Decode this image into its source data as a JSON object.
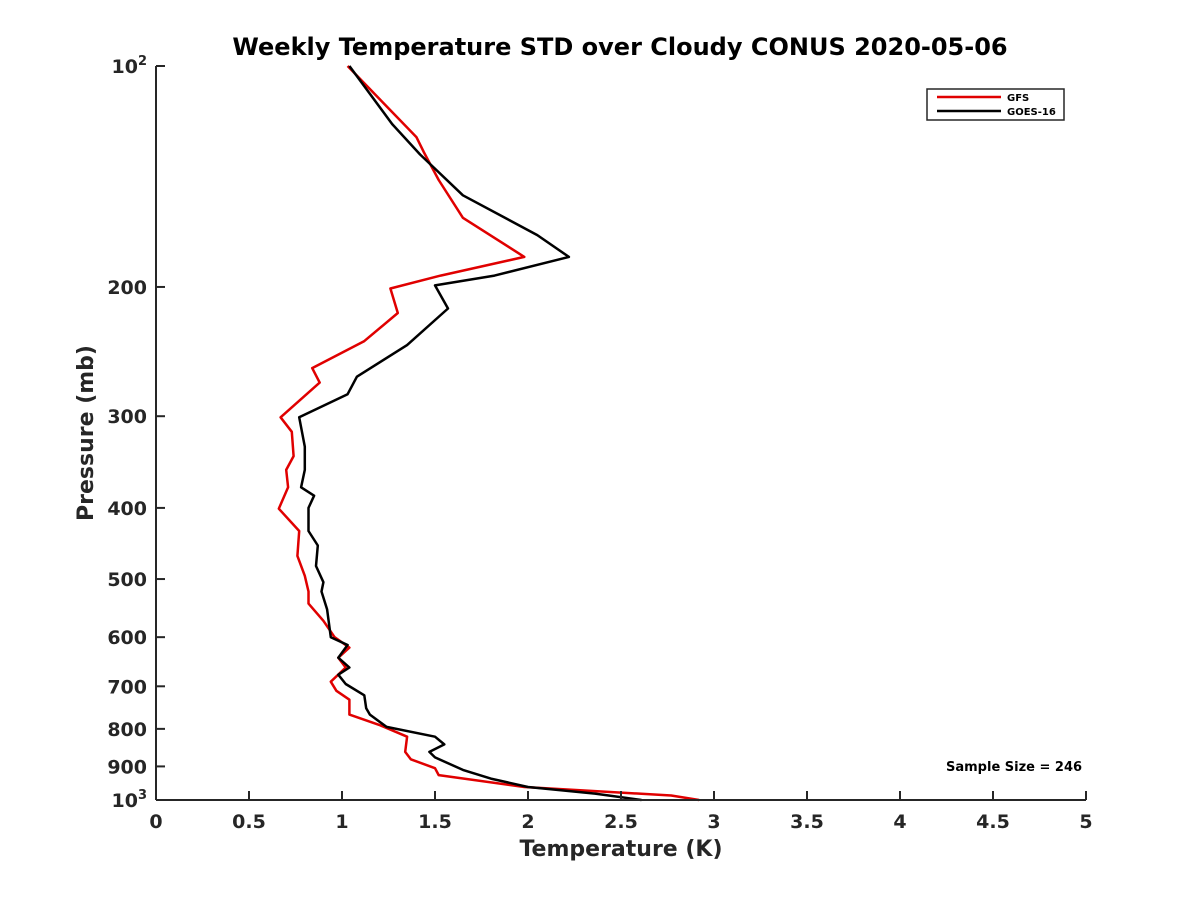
{
  "chart_data": {
    "type": "line",
    "title": "Weekly Temperature STD over Cloudy CONUS 2020-05-06",
    "xlabel": "Temperature (K)",
    "ylabel": "Pressure (mb)",
    "xlim": [
      0,
      5
    ],
    "ylim": [
      1000,
      100
    ],
    "yscale": "log",
    "y_reversed": true,
    "grid": false,
    "legend_position": "top-right",
    "x_ticks": [
      {
        "value": 0,
        "label": "0"
      },
      {
        "value": 0.5,
        "label": "0.5"
      },
      {
        "value": 1,
        "label": "1"
      },
      {
        "value": 1.5,
        "label": "1.5"
      },
      {
        "value": 2,
        "label": "2"
      },
      {
        "value": 2.5,
        "label": "2.5"
      },
      {
        "value": 3,
        "label": "3"
      },
      {
        "value": 3.5,
        "label": "3.5"
      },
      {
        "value": 4,
        "label": "4"
      },
      {
        "value": 4.5,
        "label": "4.5"
      },
      {
        "value": 5,
        "label": "5"
      }
    ],
    "y_ticks": [
      {
        "value": 100,
        "base": "10",
        "exp": "2"
      },
      {
        "value": 200,
        "label": "200"
      },
      {
        "value": 300,
        "label": "300"
      },
      {
        "value": 400,
        "label": "400"
      },
      {
        "value": 500,
        "label": "500"
      },
      {
        "value": 600,
        "label": "600"
      },
      {
        "value": 700,
        "label": "700"
      },
      {
        "value": 800,
        "label": "800"
      },
      {
        "value": 900,
        "label": "900"
      },
      {
        "value": 1000,
        "base": "10",
        "exp": "3"
      }
    ],
    "annotation": "Sample Size = 246",
    "series": [
      {
        "name": "GFS",
        "color": "#e00000",
        "points": [
          [
            1.03,
            100
          ],
          [
            1.4,
            125
          ],
          [
            1.44,
            131
          ],
          [
            1.52,
            143
          ],
          [
            1.65,
            161
          ],
          [
            1.98,
            182
          ],
          [
            1.53,
            193
          ],
          [
            1.26,
            201
          ],
          [
            1.3,
            217
          ],
          [
            1.12,
            237
          ],
          [
            0.84,
            258
          ],
          [
            0.88,
            270
          ],
          [
            0.67,
            301
          ],
          [
            0.73,
            315
          ],
          [
            0.74,
            340
          ],
          [
            0.7,
            355
          ],
          [
            0.71,
            375
          ],
          [
            0.66,
            401
          ],
          [
            0.77,
            430
          ],
          [
            0.76,
            465
          ],
          [
            0.8,
            495
          ],
          [
            0.82,
            520
          ],
          [
            0.82,
            540
          ],
          [
            0.9,
            570
          ],
          [
            0.96,
            600
          ],
          [
            1.04,
            620
          ],
          [
            0.98,
            640
          ],
          [
            1.02,
            660
          ],
          [
            0.94,
            690
          ],
          [
            0.97,
            710
          ],
          [
            1.04,
            730
          ],
          [
            1.04,
            765
          ],
          [
            1.2,
            790
          ],
          [
            1.35,
            820
          ],
          [
            1.34,
            860
          ],
          [
            1.37,
            880
          ],
          [
            1.5,
            905
          ],
          [
            1.52,
            925
          ],
          [
            1.98,
            960
          ],
          [
            2.77,
            986
          ],
          [
            2.92,
            1000
          ]
        ]
      },
      {
        "name": "GOES-16",
        "color": "#000000",
        "points": [
          [
            1.04,
            100
          ],
          [
            1.27,
            120
          ],
          [
            1.42,
            132
          ],
          [
            1.65,
            150
          ],
          [
            2.05,
            170
          ],
          [
            2.22,
            182
          ],
          [
            1.82,
            193
          ],
          [
            1.5,
            199
          ],
          [
            1.57,
            214
          ],
          [
            1.35,
            240
          ],
          [
            1.08,
            265
          ],
          [
            1.03,
            280
          ],
          [
            0.77,
            301
          ],
          [
            0.8,
            330
          ],
          [
            0.8,
            355
          ],
          [
            0.78,
            375
          ],
          [
            0.85,
            385
          ],
          [
            0.82,
            400
          ],
          [
            0.82,
            430
          ],
          [
            0.87,
            450
          ],
          [
            0.86,
            480
          ],
          [
            0.9,
            505
          ],
          [
            0.89,
            520
          ],
          [
            0.92,
            550
          ],
          [
            0.94,
            600
          ],
          [
            1.03,
            615
          ],
          [
            0.98,
            640
          ],
          [
            1.04,
            660
          ],
          [
            0.98,
            675
          ],
          [
            1.02,
            695
          ],
          [
            1.12,
            720
          ],
          [
            1.13,
            750
          ],
          [
            1.15,
            765
          ],
          [
            1.24,
            795
          ],
          [
            1.5,
            820
          ],
          [
            1.55,
            840
          ],
          [
            1.47,
            860
          ],
          [
            1.5,
            875
          ],
          [
            1.65,
            910
          ],
          [
            1.8,
            935
          ],
          [
            2.0,
            960
          ],
          [
            2.36,
            980
          ],
          [
            2.61,
            1000
          ]
        ]
      }
    ]
  }
}
